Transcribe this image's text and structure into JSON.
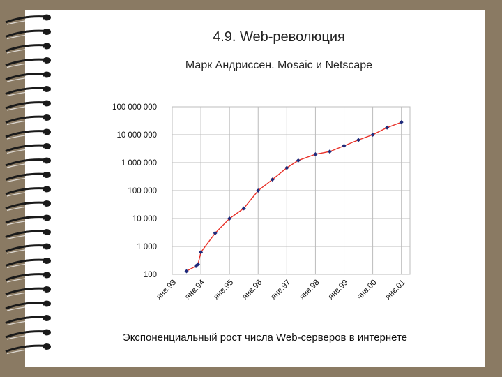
{
  "slide": {
    "title": "4.9. Web-революция",
    "subtitle": "Марк Андриссен. Mosaic и Netscape",
    "caption": "Экспоненциальный рост числа Web-серверов в интернете"
  },
  "colors": {
    "background": "#8a7a63",
    "paper": "#ffffff",
    "line": "#e8322a",
    "marker": "#1f2a7a",
    "grid": "#bcbcbc"
  },
  "chart_data": {
    "type": "line",
    "scale": "log",
    "ylim": [
      100,
      100000000
    ],
    "yticks": [
      "100 000 000",
      "10 000 000",
      "1 000 000",
      "100 000",
      "10 000",
      "1 000",
      "100"
    ],
    "xticks": [
      "янв.93",
      "янв.94",
      "янв.95",
      "янв.96",
      "янв.97",
      "янв.98",
      "янв.99",
      "янв.00",
      "янв.01"
    ],
    "grid": true,
    "series": [
      {
        "x": [
          1993.5,
          1993.83,
          1993.9,
          1994.0,
          1994.5,
          1995.0,
          1995.5,
          1996.0,
          1996.5,
          1997.0,
          1997.4,
          1998.0,
          1998.5,
          1999.0,
          1999.5,
          2000.0,
          2000.5,
          2001.0
        ],
        "y": [
          130,
          200,
          230,
          620,
          3000,
          10000,
          23000,
          100000,
          250000,
          650000,
          1200000,
          2000000,
          2500000,
          4000000,
          6500000,
          10000000,
          18000000,
          28000000
        ]
      }
    ]
  }
}
